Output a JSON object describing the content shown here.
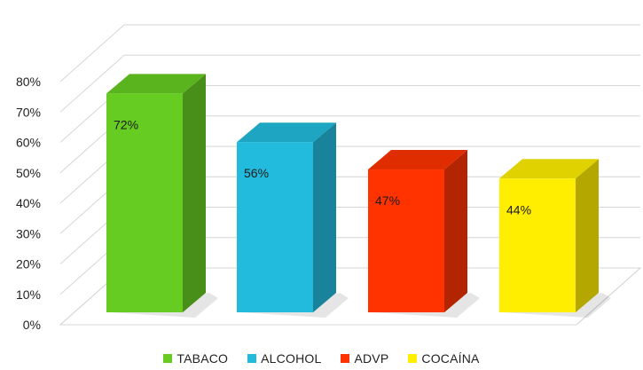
{
  "chart_data": {
    "type": "bar",
    "categories": [
      "TABACO",
      "ALCOHOL",
      "ADVP",
      "COCAÍNA"
    ],
    "values": [
      72,
      56,
      47,
      44
    ],
    "data_labels": [
      "72%",
      "56%",
      "47%",
      "44%"
    ],
    "colors": [
      "#66cc22",
      "#22bbdd",
      "#ff3300",
      "#ffee00"
    ],
    "ylim": [
      0,
      80
    ],
    "yticks": [
      0,
      10,
      20,
      30,
      40,
      50,
      60,
      70,
      80
    ],
    "ytick_labels": [
      "0%",
      "10%",
      "20%",
      "30%",
      "40%",
      "50%",
      "60%",
      "70%",
      "80%"
    ],
    "grid": true,
    "legend_position": "bottom",
    "style": "3d"
  },
  "legend": {
    "items": [
      {
        "label": "TABACO",
        "color": "#66cc22"
      },
      {
        "label": "ALCOHOL",
        "color": "#22bbdd"
      },
      {
        "label": "ADVP",
        "color": "#ff3300"
      },
      {
        "label": "COCAÍNA",
        "color": "#ffee00"
      }
    ]
  }
}
